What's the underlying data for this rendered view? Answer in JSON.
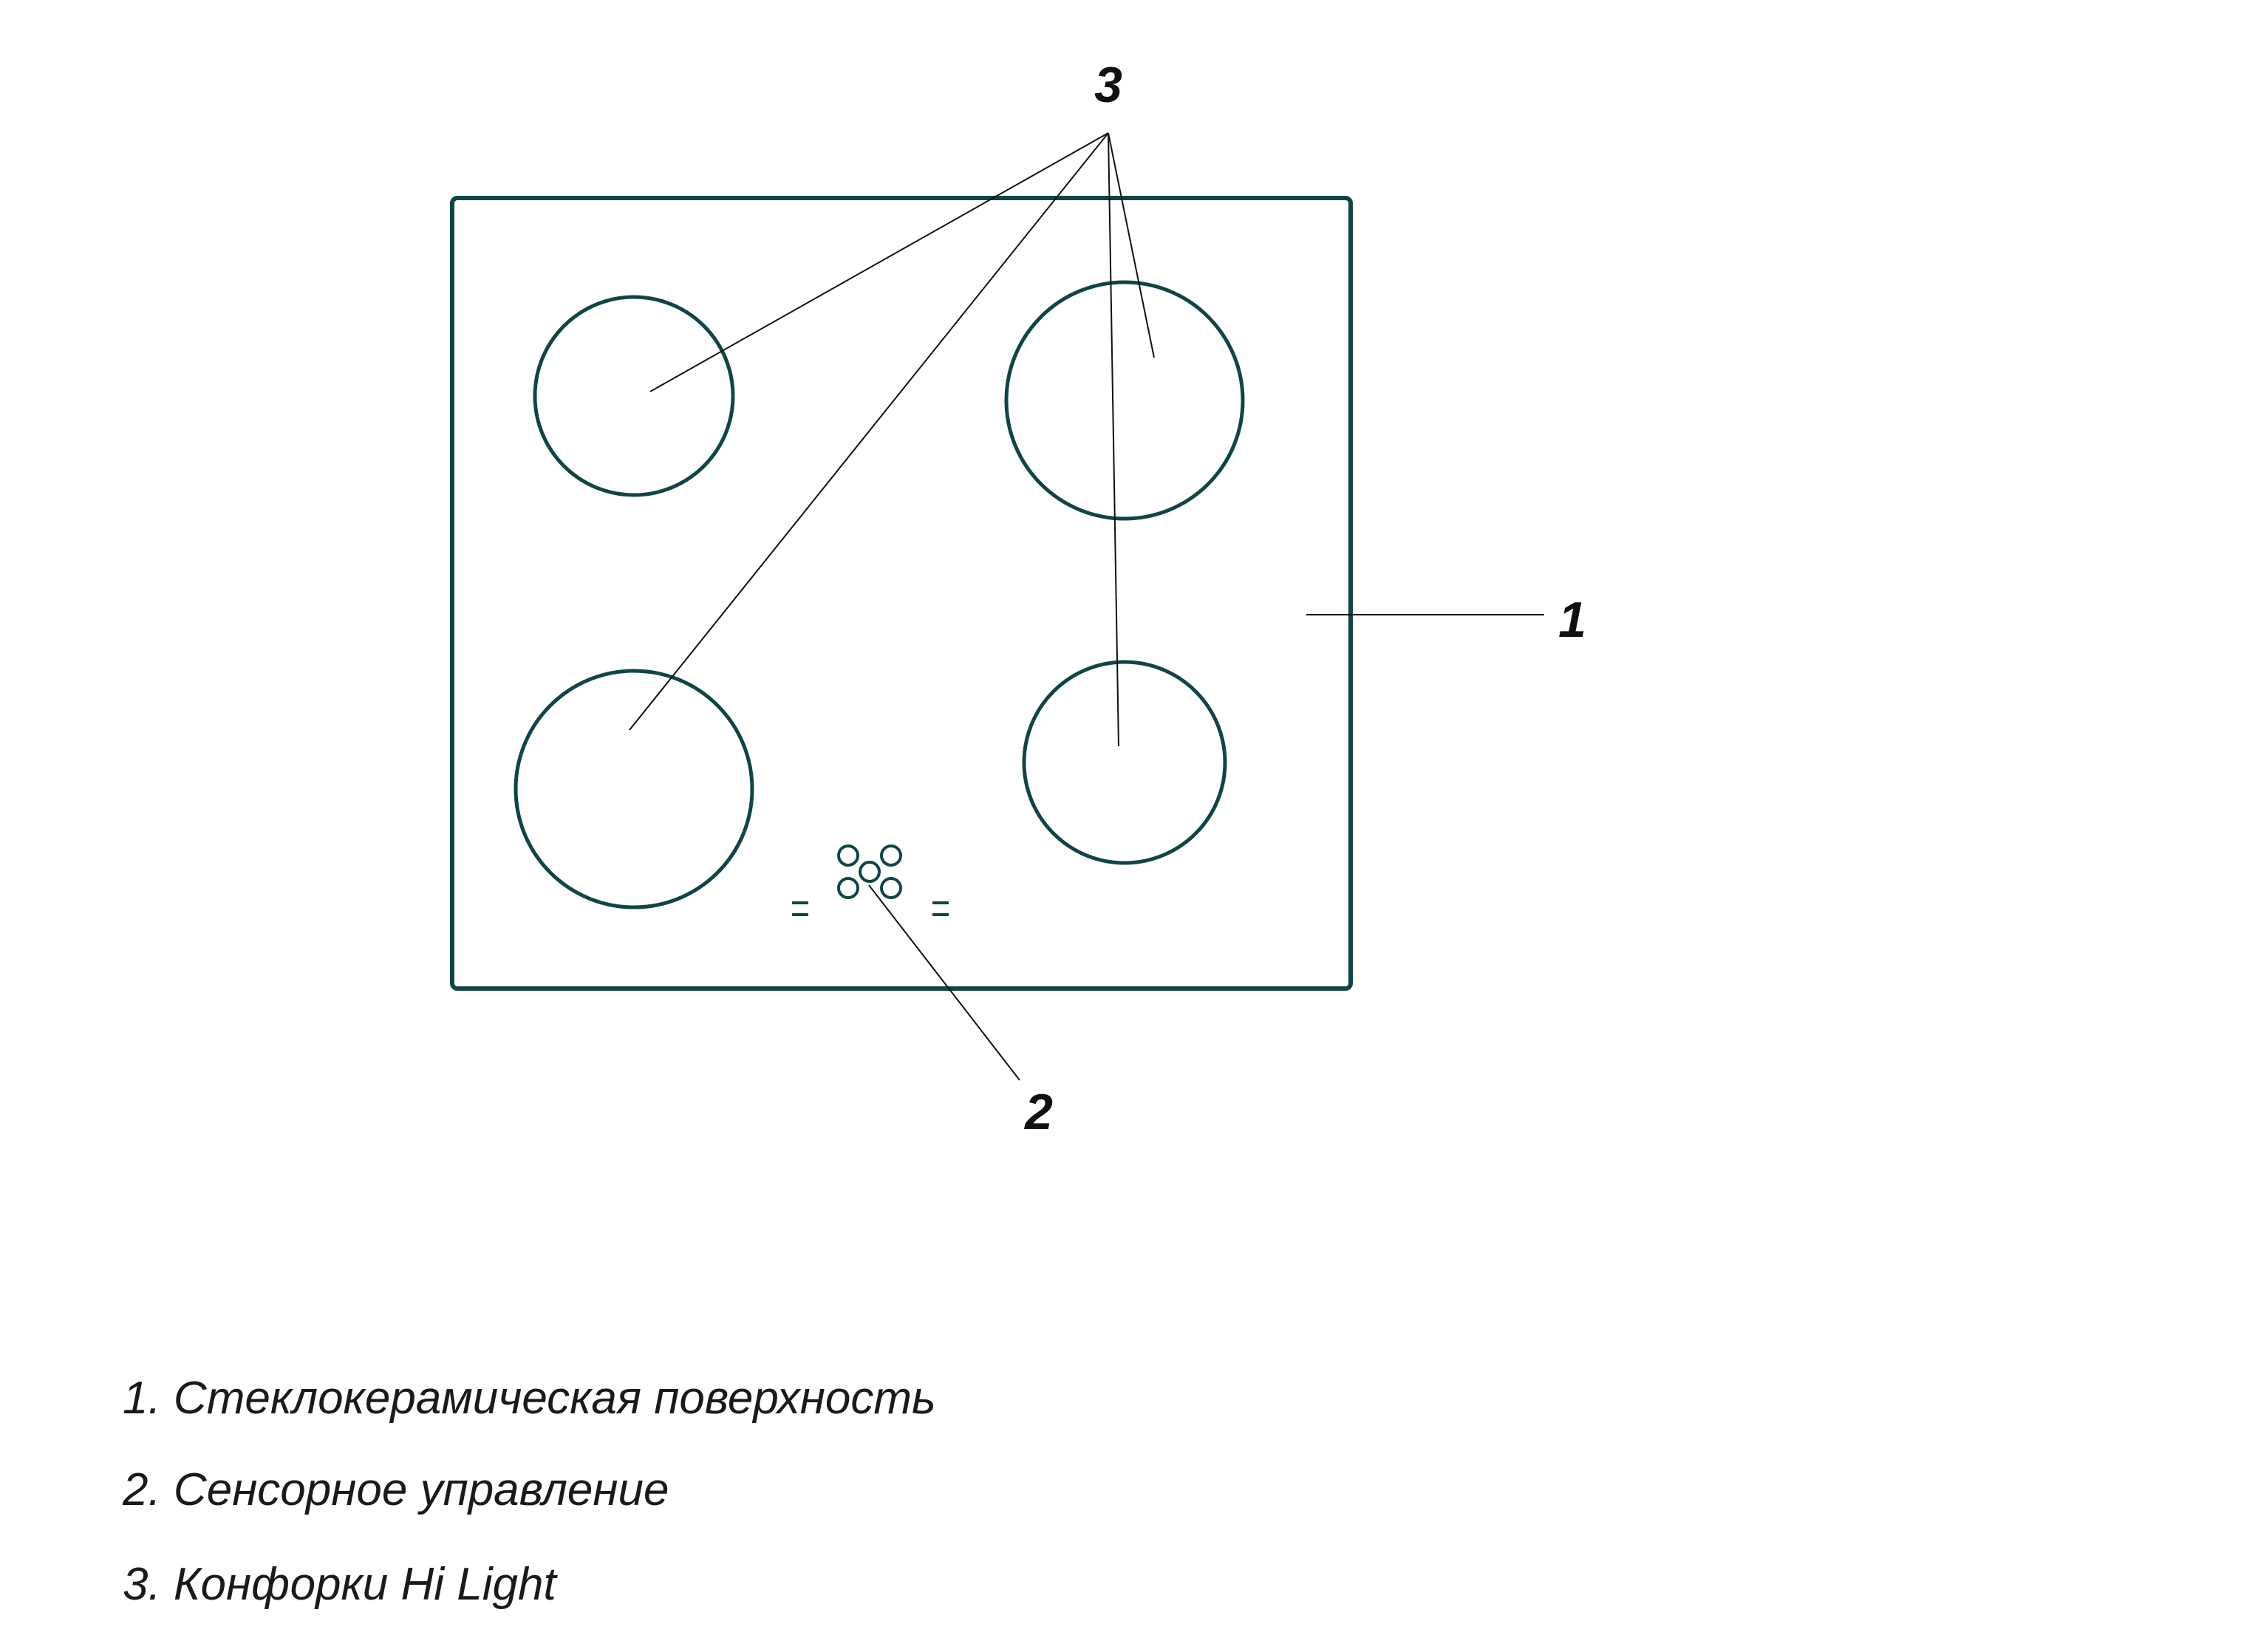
{
  "callouts": {
    "surface": "1",
    "controls": "2",
    "burners": "3"
  },
  "legend": [
    {
      "text": "1. Стеклокерамическая поверхность"
    },
    {
      "text": "2. Сенсорное управление"
    },
    {
      "text": "3. Конфорки Hi Light"
    }
  ],
  "colors": {
    "outline": "#0f4545",
    "leader": "#111111",
    "text": "#111111"
  }
}
